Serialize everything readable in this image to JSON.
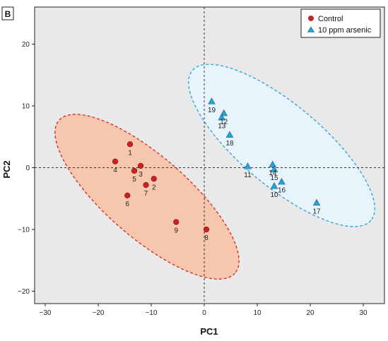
{
  "panel_label": "B",
  "chart_data": {
    "type": "scatter",
    "xlabel": "PC1",
    "ylabel": "PC2",
    "xlim": [
      -32,
      34
    ],
    "ylim": [
      -22,
      26
    ],
    "xticks": [
      -30,
      -20,
      -10,
      0,
      10,
      20,
      30
    ],
    "yticks": [
      -20,
      -10,
      0,
      10,
      20
    ],
    "xtick_labels": [
      "−30",
      "−20",
      "−10",
      "0",
      "10",
      "20",
      "30"
    ],
    "ytick_labels": [
      "−20",
      "−10",
      "0",
      "10",
      "20"
    ],
    "grid": false,
    "reference_lines": {
      "x": 0,
      "y": 0,
      "style": "dashed"
    },
    "legend_position": "top-right",
    "series": [
      {
        "name": "Control",
        "marker": "circle",
        "color": "#cc2222",
        "ellipse_fill": "#f6c7ad",
        "ellipse_stroke": "#dd2222",
        "points": [
          {
            "label": "1",
            "x": -14.0,
            "y": 3.8
          },
          {
            "label": "2",
            "x": -9.5,
            "y": -1.8
          },
          {
            "label": "3",
            "x": -12.0,
            "y": 0.3
          },
          {
            "label": "4",
            "x": -16.8,
            "y": 1.0
          },
          {
            "label": "5",
            "x": -13.2,
            "y": -0.5
          },
          {
            "label": "6",
            "x": -14.5,
            "y": -4.5
          },
          {
            "label": "7",
            "x": -11.0,
            "y": -2.8
          },
          {
            "label": "8",
            "x": 0.4,
            "y": -10.0
          },
          {
            "label": "9",
            "x": -5.3,
            "y": -8.8
          }
        ]
      },
      {
        "name": "10 ppm arsenic",
        "marker": "triangle",
        "color": "#29a3d6",
        "ellipse_fill": "#e8f4fc",
        "ellipse_stroke": "#2a9fd8",
        "points": [
          {
            "label": "10",
            "x": 13.2,
            "y": -3.0
          },
          {
            "label": "11",
            "x": 8.2,
            "y": 0.2
          },
          {
            "label": "12",
            "x": 3.7,
            "y": 8.8
          },
          {
            "label": "13",
            "x": 3.3,
            "y": 8.1
          },
          {
            "label": "14",
            "x": 12.9,
            "y": 0.5
          },
          {
            "label": "15",
            "x": 13.2,
            "y": -0.3
          },
          {
            "label": "16",
            "x": 14.6,
            "y": -2.3
          },
          {
            "label": "17",
            "x": 21.2,
            "y": -5.7
          },
          {
            "label": "18",
            "x": 4.8,
            "y": 5.3
          },
          {
            "label": "19",
            "x": 1.4,
            "y": 10.7
          }
        ]
      }
    ]
  }
}
